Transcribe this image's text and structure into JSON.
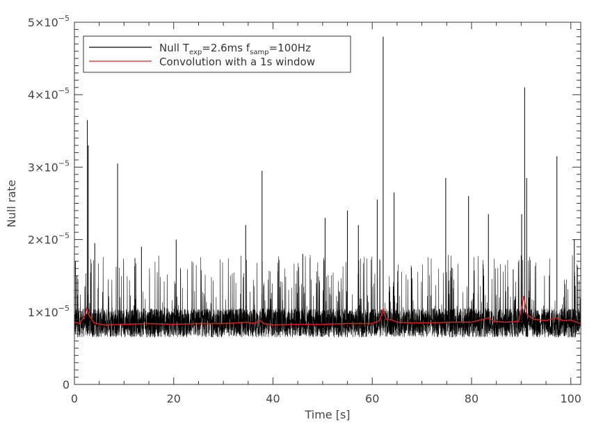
{
  "chart_data": {
    "type": "line",
    "xlabel": "Time [s]",
    "ylabel": "Null rate",
    "xlim": [
      0,
      102
    ],
    "ylim": [
      0,
      5e-05
    ],
    "x_ticks": [
      0,
      20,
      40,
      60,
      80,
      100
    ],
    "y_ticks": [
      0,
      1e-05,
      2e-05,
      3e-05,
      4e-05,
      5e-05
    ],
    "x_tick_labels": [
      "0",
      "20",
      "40",
      "60",
      "80",
      "100"
    ],
    "y_tick_labels": [
      {
        "mantissa": "0",
        "exponent": ""
      },
      {
        "mantissa": "1×10",
        "exponent": "−5"
      },
      {
        "mantissa": "2×10",
        "exponent": "−5"
      },
      {
        "mantissa": "3×10",
        "exponent": "−5"
      },
      {
        "mantissa": "4×10",
        "exponent": "−5"
      },
      {
        "mantissa": "5×10",
        "exponent": "−5"
      }
    ],
    "legend": {
      "placement": "top-left",
      "entries": [
        {
          "series": "null",
          "parts": [
            {
              "text": "Null T",
              "sub": false
            },
            {
              "text": "exp",
              "sub": true
            },
            {
              "text": "=2.6ms f",
              "sub": false
            },
            {
              "text": "samp",
              "sub": true
            },
            {
              "text": "=100Hz",
              "sub": false
            }
          ]
        },
        {
          "series": "convolution",
          "parts": [
            {
              "text": "Convolution with a 1s window",
              "sub": false
            }
          ]
        }
      ]
    },
    "series": [
      {
        "id": "null",
        "color": "#000000",
        "sampling_hz": 100,
        "baseline": 8.2e-06,
        "noise_band": [
          6.5e-06,
          1.05e-05
        ],
        "spikes": [
          [
            0.2,
            1.7e-05
          ],
          [
            0.5,
            1.5e-05
          ],
          [
            2.6,
            3.65e-05
          ],
          [
            2.8,
            3.3e-05
          ],
          [
            4.1,
            1.95e-05
          ],
          [
            8.7,
            3.05e-05
          ],
          [
            13.5,
            1.9e-05
          ],
          [
            20.5,
            2e-05
          ],
          [
            34.5,
            2.2e-05
          ],
          [
            37.8,
            2.95e-05
          ],
          [
            46.0,
            1.8e-05
          ],
          [
            50.5,
            2.3e-05
          ],
          [
            55.0,
            2.4e-05
          ],
          [
            57.2,
            2.2e-05
          ],
          [
            61.0,
            2.55e-05
          ],
          [
            62.2,
            4.8e-05
          ],
          [
            64.4,
            2.65e-05
          ],
          [
            74.8,
            2.85e-05
          ],
          [
            79.4,
            2.6e-05
          ],
          [
            83.4,
            2.35e-05
          ],
          [
            90.1,
            2.35e-05
          ],
          [
            90.7,
            4.1e-05
          ],
          [
            91.1,
            2.85e-05
          ],
          [
            97.2,
            3.15e-05
          ],
          [
            100.7,
            2e-05
          ]
        ]
      },
      {
        "id": "convolution",
        "color": "#d42020",
        "x": [
          0,
          1,
          2,
          2.5,
          3,
          4,
          6,
          10,
          15,
          20,
          25,
          30,
          33,
          34.5,
          36,
          37.5,
          38.2,
          40,
          45,
          50,
          55,
          60,
          61.5,
          62.2,
          62.8,
          64,
          65,
          68,
          72,
          76,
          80,
          83.5,
          84.5,
          87,
          89.5,
          90.5,
          91.2,
          92.5,
          95,
          97,
          98.5,
          100,
          102
        ],
        "y": [
          8.6e-06,
          8.4e-06,
          9.4e-06,
          1.05e-05,
          9.5e-06,
          8.5e-06,
          8.2e-06,
          8.3e-06,
          8.4e-06,
          8.3e-06,
          8.4e-06,
          8.4e-06,
          8.5e-06,
          8.6e-06,
          8.4e-06,
          8.8e-06,
          8.4e-06,
          8.2e-06,
          8.3e-06,
          8.3e-06,
          8.4e-06,
          8.4e-06,
          8.8e-06,
          1.05e-05,
          9e-06,
          8.9e-06,
          8.6e-06,
          8.5e-06,
          8.5e-06,
          8.6e-06,
          8.6e-06,
          9.2e-06,
          8.7e-06,
          8.6e-06,
          8.7e-06,
          1.22e-05,
          9.6e-06,
          9e-06,
          8.8e-06,
          9.2e-06,
          8.8e-06,
          8.9e-06,
          8.4e-06
        ]
      }
    ]
  }
}
